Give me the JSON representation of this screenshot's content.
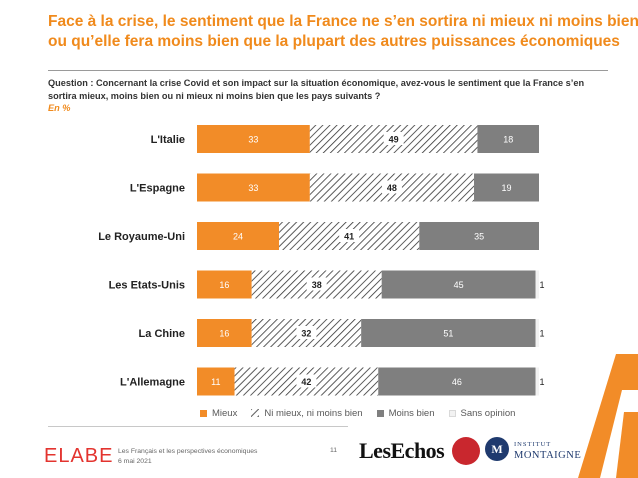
{
  "title": {
    "line1": "Face à la crise, le sentiment que la France ne s’en sortira ni mieux ni moins bien",
    "line2": "ou qu’elle fera moins bien que la plupart des autres puissances économiques"
  },
  "question": "Question : Concernant la crise Covid et son impact sur la situation économique, avez-vous le sentiment que la France s’en sortira mieux, moins bien ou ni mieux ni moins bien que les pays suivants ?",
  "unit": "En %",
  "colors": {
    "mieux": "#f28c28",
    "ni_mieux": "#ffffff",
    "hatch": "#333333",
    "moins_bien": "#7f7f7f",
    "sans_opinion": "#f2f2f2",
    "title": "#f08a1c",
    "brand_red": "#e3342f"
  },
  "chart_data": {
    "type": "bar",
    "orientation": "horizontal-stacked-100",
    "categories": [
      "L'Italie",
      "L'Espagne",
      "Le Royaume-Uni",
      "Les Etats-Unis",
      "La Chine",
      "L'Allemagne"
    ],
    "series": [
      {
        "name": "Mieux",
        "values": [
          33,
          33,
          24,
          16,
          16,
          11
        ]
      },
      {
        "name": "Ni mieux, ni moins bien",
        "values": [
          49,
          48,
          41,
          38,
          32,
          42
        ]
      },
      {
        "name": "Moins bien",
        "values": [
          18,
          19,
          35,
          45,
          51,
          46
        ]
      },
      {
        "name": "Sans opinion",
        "values": [
          0,
          0,
          0,
          1,
          1,
          1
        ]
      }
    ],
    "xlim": [
      0,
      100
    ],
    "legend_position": "bottom"
  },
  "footer": {
    "brand": "ELABE",
    "line1": "Les Français et les perspectives économiques",
    "line2": "6 mai 2021",
    "page": "11",
    "partner1": "LesEchos",
    "partner3_small": "INSTITUT",
    "partner3_big": "MONTAIGNE",
    "partner3_mark": "M"
  }
}
